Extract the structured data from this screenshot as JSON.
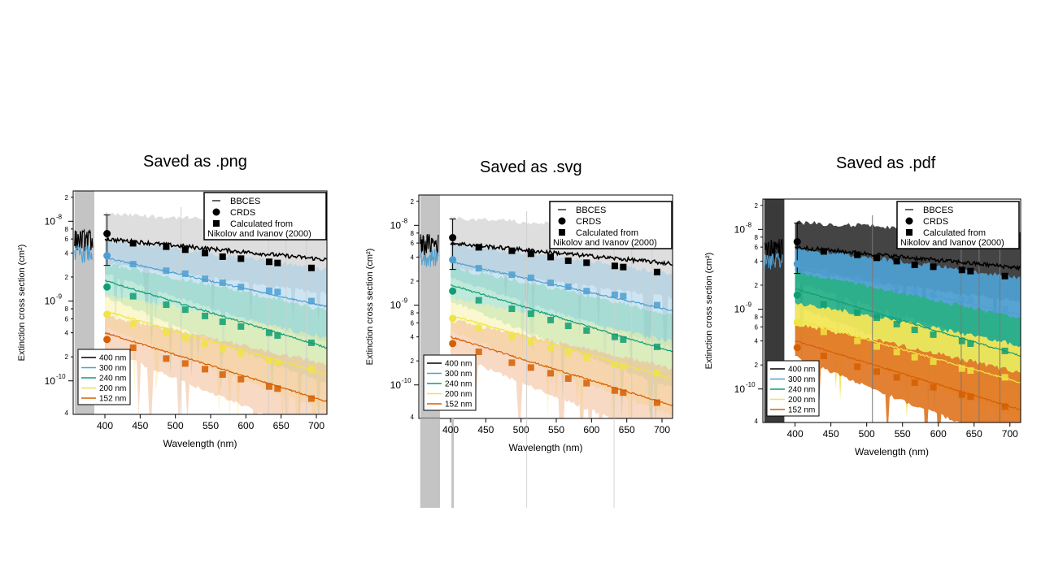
{
  "slide": {
    "titles": [
      "Saved as .png",
      "Saved as .svg",
      "Saved as .pdf"
    ]
  },
  "chart_data": [
    {
      "id": "png",
      "type": "line",
      "title": "Saved as .png",
      "xlabel": "Wavelength (nm)",
      "ylabel": "Extinction cross section (cm²)",
      "xlim": [
        355,
        715
      ],
      "ylim_log10": [
        -10.42,
        -7.62
      ],
      "yscale": "log",
      "x_ticks": [
        400,
        450,
        500,
        550,
        600,
        650,
        700
      ],
      "y_decades": [
        {
          "exp": -8,
          "label": "10",
          "sup": "-8"
        },
        {
          "exp": -9,
          "label": "10",
          "sup": "-9"
        },
        {
          "exp": -10,
          "label": "10",
          "sup": "-10"
        }
      ],
      "y_minor_labels": [
        "2",
        "4",
        "6",
        "8"
      ],
      "legend_top": [
        "BBCES",
        "CRDS",
        "Calculated from",
        "Nikolov and Ivanov (2000)"
      ],
      "legend_bottom": [
        "400 nm",
        "300 nm",
        "240 nm",
        "200 nm",
        "152 nm"
      ],
      "bands_style": "light",
      "series": [
        {
          "name": "400 nm",
          "color": "#000000",
          "band": "#bdbdbd",
          "crds": 7e-09,
          "crds_err": [
            2.8e-09,
            1.2e-08
          ],
          "points_x": [
            440,
            487,
            514,
            542,
            567,
            593,
            633,
            645,
            693
          ],
          "points_y": [
            5.3e-09,
            4.8e-09,
            4.4e-09,
            4e-09,
            3.6e-09,
            3.4e-09,
            3.1e-09,
            3e-09,
            2.6e-09
          ],
          "line_start": 6e-09,
          "line_end": 3.3e-09
        },
        {
          "name": "300 nm",
          "color": "#4e9fd1",
          "band": "#9ccbe6",
          "crds": 3.7e-09,
          "points_x": [
            440,
            487,
            514,
            542,
            567,
            593,
            633,
            645,
            693
          ],
          "points_y": [
            2.9e-09,
            2.4e-09,
            2.2e-09,
            1.9e-09,
            1.7e-09,
            1.5e-09,
            1.35e-09,
            1.3e-09,
            1e-09
          ],
          "line_start": 3.5e-09,
          "line_end": 8.5e-10
        },
        {
          "name": "240 nm",
          "color": "#0f9e73",
          "band": "#7fd3b6",
          "crds": 1.5e-09,
          "points_x": [
            440,
            487,
            514,
            542,
            567,
            593,
            633,
            645,
            693
          ],
          "points_y": [
            1.15e-09,
            9e-10,
            7.8e-10,
            6.5e-10,
            5.5e-10,
            4.8e-10,
            4e-10,
            3.7e-10,
            3e-10
          ],
          "line_start": 1.8e-09,
          "line_end": 2.6e-10
        },
        {
          "name": "200 nm",
          "color": "#f0e442",
          "band": "#f7f0a0",
          "crds": 6.8e-10,
          "points_x": [
            440,
            487,
            514,
            542,
            567,
            593,
            633,
            645,
            693
          ],
          "points_y": [
            5.2e-10,
            4e-10,
            3.4e-10,
            2.9e-10,
            2.5e-10,
            2.2e-10,
            1.8e-10,
            1.7e-10,
            1.4e-10
          ],
          "line_start": 7.5e-10,
          "line_end": 1.2e-10
        },
        {
          "name": "152 nm",
          "color": "#d55e00",
          "band": "#f2b48a",
          "crds": 3.3e-10,
          "points_x": [
            440,
            487,
            514,
            542,
            567,
            593,
            633,
            645,
            693
          ],
          "points_y": [
            2.6e-10,
            1.9e-10,
            1.65e-10,
            1.4e-10,
            1.2e-10,
            1.05e-10,
            8.5e-11,
            8e-11,
            6e-11
          ],
          "line_start": 4e-10,
          "line_end": 5.5e-11
        }
      ]
    },
    {
      "id": "svg",
      "type": "line",
      "title": "Saved as .svg",
      "xlabel": "Wavelength (nm)",
      "ylabel": "Extinction cross section (cm²)",
      "xlim": [
        355,
        715
      ],
      "ylim_log10": [
        -10.42,
        -7.62
      ],
      "yscale": "log",
      "x_ticks": [
        400,
        450,
        500,
        550,
        600,
        650,
        700
      ],
      "y_decades": [
        {
          "exp": -8,
          "label": "10",
          "sup": "-8"
        },
        {
          "exp": -9,
          "label": "10",
          "sup": "-9"
        },
        {
          "exp": -10,
          "label": "10",
          "sup": "-10"
        }
      ],
      "y_minor_labels": [
        "2",
        "4",
        "6",
        "8"
      ],
      "legend_top": [
        "BBCES",
        "CRDS",
        "Calculated from",
        "Nikolov and Ivanov (2000)"
      ],
      "legend_bottom": [
        "400 nm",
        "300 nm",
        "240 nm",
        "200 nm",
        "152 nm"
      ],
      "bands_style": "light",
      "overflow_below": true,
      "series": [
        {
          "name": "400 nm",
          "color": "#000000",
          "band": "#bdbdbd",
          "crds": 7e-09,
          "crds_err": [
            2.8e-09,
            1.2e-08
          ],
          "points_x": [
            440,
            487,
            514,
            542,
            567,
            593,
            633,
            645,
            693
          ],
          "points_y": [
            5.3e-09,
            4.8e-09,
            4.4e-09,
            4e-09,
            3.6e-09,
            3.4e-09,
            3.1e-09,
            3e-09,
            2.6e-09
          ],
          "line_start": 6e-09,
          "line_end": 3.3e-09
        },
        {
          "name": "300 nm",
          "color": "#4e9fd1",
          "band": "#9ccbe6",
          "crds": 3.7e-09,
          "points_x": [
            440,
            487,
            514,
            542,
            567,
            593,
            633,
            645,
            693
          ],
          "points_y": [
            2.9e-09,
            2.4e-09,
            2.2e-09,
            1.9e-09,
            1.7e-09,
            1.5e-09,
            1.35e-09,
            1.3e-09,
            1e-09
          ],
          "line_start": 3.5e-09,
          "line_end": 8.5e-10
        },
        {
          "name": "240 nm",
          "color": "#0f9e73",
          "band": "#7fd3b6",
          "crds": 1.5e-09,
          "points_x": [
            440,
            487,
            514,
            542,
            567,
            593,
            633,
            645,
            693
          ],
          "points_y": [
            1.15e-09,
            9e-10,
            7.8e-10,
            6.5e-10,
            5.5e-10,
            4.8e-10,
            4e-10,
            3.7e-10,
            3e-10
          ],
          "line_start": 1.8e-09,
          "line_end": 2.6e-10
        },
        {
          "name": "200 nm",
          "color": "#f0e442",
          "band": "#f7f0a0",
          "crds": 6.8e-10,
          "points_x": [
            440,
            487,
            514,
            542,
            567,
            593,
            633,
            645,
            693
          ],
          "points_y": [
            5.2e-10,
            4e-10,
            3.4e-10,
            2.9e-10,
            2.5e-10,
            2.2e-10,
            1.8e-10,
            1.7e-10,
            1.4e-10
          ],
          "line_start": 7.5e-10,
          "line_end": 1.2e-10
        },
        {
          "name": "152 nm",
          "color": "#d55e00",
          "band": "#f2b48a",
          "crds": 3.3e-10,
          "points_x": [
            440,
            487,
            514,
            542,
            567,
            593,
            633,
            645,
            693
          ],
          "points_y": [
            2.6e-10,
            1.9e-10,
            1.65e-10,
            1.4e-10,
            1.2e-10,
            1.05e-10,
            8.5e-11,
            8e-11,
            6e-11
          ],
          "line_start": 4e-10,
          "line_end": 5.5e-11
        }
      ]
    },
    {
      "id": "pdf",
      "type": "line",
      "title": "Saved as .pdf",
      "xlabel": "Wavelength (nm)",
      "ylabel": "Extinction cross section (cm²)",
      "xlim": [
        355,
        715
      ],
      "ylim_log10": [
        -10.42,
        -7.62
      ],
      "yscale": "log",
      "x_ticks": [
        400,
        450,
        500,
        550,
        600,
        650,
        700
      ],
      "y_decades": [
        {
          "exp": -8,
          "label": "10",
          "sup": "-8"
        },
        {
          "exp": -9,
          "label": "10",
          "sup": "-9"
        },
        {
          "exp": -10,
          "label": "10",
          "sup": "-10"
        }
      ],
      "y_minor_labels": [
        "2",
        "4",
        "6",
        "8"
      ],
      "legend_top": [
        "BBCES",
        "CRDS",
        "Calculated from",
        "Nikolov and Ivanov (2000)"
      ],
      "legend_bottom": [
        "400 nm",
        "300 nm",
        "240 nm",
        "200 nm",
        "152 nm"
      ],
      "bands_style": "opaque",
      "series": [
        {
          "name": "400 nm",
          "color": "#000000",
          "band": "#3a3a3a",
          "crds": 7e-09,
          "crds_err": [
            2.8e-09,
            1.2e-08
          ],
          "points_x": [
            440,
            487,
            514,
            542,
            567,
            593,
            633,
            645,
            693
          ],
          "points_y": [
            5.3e-09,
            4.8e-09,
            4.4e-09,
            4e-09,
            3.6e-09,
            3.4e-09,
            3.1e-09,
            3e-09,
            2.6e-09
          ],
          "line_start": 6e-09,
          "line_end": 3.3e-09
        },
        {
          "name": "300 nm",
          "color": "#4e9fd1",
          "band": "#4e9fd1",
          "crds": 3.7e-09,
          "points_x": [
            440,
            487,
            514,
            542,
            567,
            593,
            633,
            645,
            693
          ],
          "points_y": [
            2.9e-09,
            2.4e-09,
            2.2e-09,
            1.9e-09,
            1.7e-09,
            1.5e-09,
            1.35e-09,
            1.3e-09,
            1e-09
          ],
          "line_start": 3.5e-09,
          "line_end": 8.5e-10
        },
        {
          "name": "240 nm",
          "color": "#0f9e73",
          "band": "#2bb088",
          "crds": 1.5e-09,
          "points_x": [
            440,
            487,
            514,
            542,
            567,
            593,
            633,
            645,
            693
          ],
          "points_y": [
            1.15e-09,
            9e-10,
            7.8e-10,
            6.5e-10,
            5.5e-10,
            4.8e-10,
            4e-10,
            3.7e-10,
            3e-10
          ],
          "line_start": 1.8e-09,
          "line_end": 2.6e-10
        },
        {
          "name": "200 nm",
          "color": "#f0e442",
          "band": "#f3e65a",
          "crds": 6.8e-10,
          "points_x": [
            440,
            487,
            514,
            542,
            567,
            593,
            633,
            645,
            693
          ],
          "points_y": [
            5.2e-10,
            4e-10,
            3.4e-10,
            2.9e-10,
            2.5e-10,
            2.2e-10,
            1.8e-10,
            1.7e-10,
            1.4e-10
          ],
          "line_start": 7.5e-10,
          "line_end": 1.2e-10
        },
        {
          "name": "152 nm",
          "color": "#d55e00",
          "band": "#e07a28",
          "crds": 3.3e-10,
          "points_x": [
            440,
            487,
            514,
            542,
            567,
            593,
            633,
            645,
            693
          ],
          "points_y": [
            2.6e-10,
            1.9e-10,
            1.65e-10,
            1.4e-10,
            1.2e-10,
            1.05e-10,
            8.5e-11,
            8e-11,
            6e-11
          ],
          "line_start": 4e-10,
          "line_end": 5.5e-11
        }
      ]
    }
  ]
}
